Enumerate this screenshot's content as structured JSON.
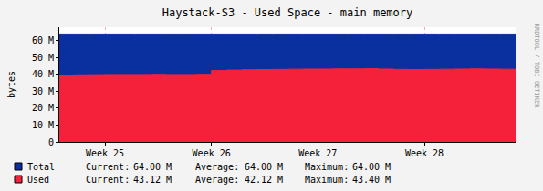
{
  "chart_data": {
    "type": "area",
    "title": "Haystack-S3 - Used Space - main memory",
    "y_label": "bytes",
    "side_text": "RRDTOOL / TOBI OETIKER",
    "categories": [
      null,
      null,
      null,
      "Week 25",
      null,
      null,
      null,
      null,
      null,
      null,
      "Week 26",
      null,
      null,
      null,
      null,
      null,
      null,
      "Week 27",
      null,
      null,
      null,
      null,
      null,
      null,
      "Week 28",
      null,
      null,
      null,
      null,
      null,
      null
    ],
    "series": [
      {
        "name": "Total",
        "color": "#0a2f9e",
        "values": [
          64000000,
          64000000,
          64000000,
          64000000,
          64000000,
          64000000,
          64000000,
          64000000,
          64000000,
          64000000,
          64000000,
          64000000,
          64000000,
          64000000,
          64000000,
          64000000,
          64000000,
          64000000,
          64000000,
          64000000,
          64000000,
          64000000,
          64000000,
          64000000,
          64000000,
          64000000,
          64000000,
          64000000,
          64000000,
          64000000,
          64000000
        ],
        "stats": [
          {
            "label": "Current:",
            "value": "64.00 M"
          },
          {
            "label": "Average:",
            "value": "64.00 M"
          },
          {
            "label": "Maximum:",
            "value": "64.00 M"
          }
        ]
      },
      {
        "name": "Used",
        "color": "#f5213a",
        "values": [
          39600000,
          39800000,
          39900000,
          40000000,
          40000000,
          40000000,
          40100000,
          40000000,
          40000000,
          40100000,
          42300000,
          42600000,
          42800000,
          42900000,
          43000000,
          43100000,
          43200000,
          43200000,
          43300000,
          43300000,
          43400000,
          43200000,
          43000000,
          42900000,
          43000000,
          43100000,
          43200000,
          43300000,
          43200000,
          43100000,
          43120000
        ],
        "stats": [
          {
            "label": "Current:",
            "value": "43.12 M"
          },
          {
            "label": "Average:",
            "value": "42.12 M"
          },
          {
            "label": "Maximum:",
            "value": "43.40 M"
          }
        ]
      }
    ],
    "ylim": [
      0,
      68000000
    ],
    "yticks": [
      0,
      {
        "value": 10000000,
        "label": "10 M"
      },
      {
        "value": 20000000,
        "label": "20 M"
      },
      {
        "value": 30000000,
        "label": "30 M"
      },
      {
        "value": 40000000,
        "label": "40 M"
      },
      {
        "value": 50000000,
        "label": "50 M"
      },
      {
        "value": 60000000,
        "label": "60 M"
      }
    ],
    "grid": true
  }
}
